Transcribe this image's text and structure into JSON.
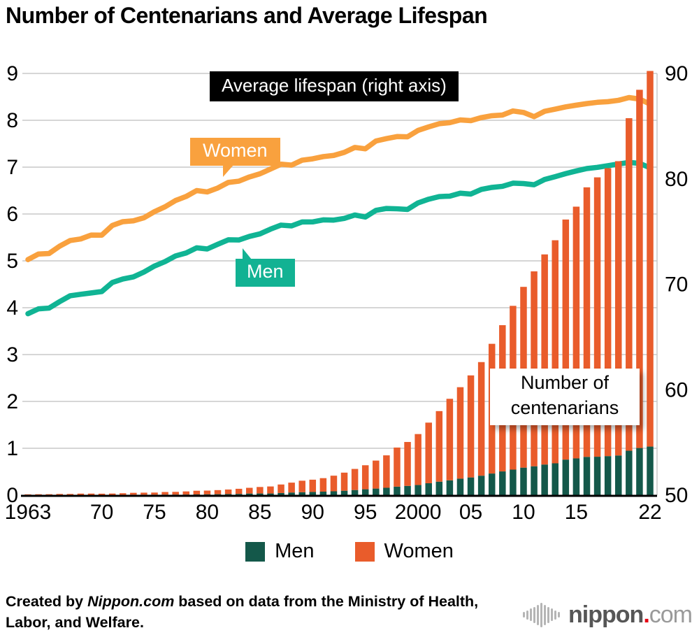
{
  "page": {
    "title": "Number of Centenarians and Average Lifespan"
  },
  "annotations": {
    "lifespan_box": "Average lifespan (right axis)",
    "women_line": "Women",
    "men_line": "Men",
    "centenarians_line1": "Number of",
    "centenarians_line2": "centenarians"
  },
  "legend": {
    "men_label": "Men",
    "women_label": "Women"
  },
  "footer": {
    "credit_prefix": "Created by ",
    "credit_source": "Nippon.com",
    "credit_line1_suffix": " based on data from the Ministry of Health,",
    "credit_line2": "Labor, and Welfare."
  },
  "logo": {
    "icon": "soundwave-bars-icon",
    "brand": "nippon",
    "dot": ".",
    "tld": "com"
  },
  "colors": {
    "bar_men": "#14584A",
    "bar_women": "#E95C2B",
    "line_men": "#10B494",
    "line_women": "#F9A13E",
    "label_men_bg": "#12B293",
    "label_women_bg": "#F9A13E",
    "grid": "#C9C9C9",
    "axis_baseline": "#000000",
    "logo_red": "#E60012"
  },
  "chart_data": {
    "type": "combo: stacked bar (number of centenarians, left axis) + line (average lifespan, right axis)",
    "years": [
      1963,
      1964,
      1965,
      1966,
      1967,
      1968,
      1969,
      1970,
      1971,
      1972,
      1973,
      1974,
      1975,
      1976,
      1977,
      1978,
      1979,
      1980,
      1981,
      1982,
      1983,
      1984,
      1985,
      1986,
      1987,
      1988,
      1989,
      1990,
      1991,
      1992,
      1993,
      1994,
      1995,
      1996,
      1997,
      1998,
      1999,
      2000,
      2001,
      2002,
      2003,
      2004,
      2005,
      2006,
      2007,
      2008,
      2009,
      2010,
      2011,
      2012,
      2013,
      2014,
      2015,
      2016,
      2017,
      2018,
      2019,
      2020,
      2021,
      2022
    ],
    "x_tick_labels": [
      {
        "year": 1963,
        "label": "1963"
      },
      {
        "year": 1970,
        "label": "70"
      },
      {
        "year": 1975,
        "label": "75"
      },
      {
        "year": 1980,
        "label": "80"
      },
      {
        "year": 1985,
        "label": "85"
      },
      {
        "year": 1990,
        "label": "90"
      },
      {
        "year": 1995,
        "label": "95"
      },
      {
        "year": 2000,
        "label": "2000"
      },
      {
        "year": 2005,
        "label": "05"
      },
      {
        "year": 2010,
        "label": "10"
      },
      {
        "year": 2015,
        "label": "15"
      },
      {
        "year": 2022,
        "label": "22"
      }
    ],
    "left_axis": {
      "ticks": [
        0,
        1,
        2,
        3,
        4,
        5,
        6,
        7,
        8,
        9
      ],
      "range": [
        0,
        9
      ],
      "scale": "bars plotted in ten-thousands of persons"
    },
    "right_axis": {
      "ticks": [
        50,
        60,
        70,
        80,
        90
      ],
      "range": [
        50,
        90
      ]
    },
    "bars": {
      "stack_order": [
        "men",
        "women"
      ],
      "series": [
        {
          "name": "Men centenarians",
          "values": [
            20,
            25,
            27,
            36,
            38,
            52,
            55,
            62,
            70,
            78,
            91,
            96,
            102,
            113,
            122,
            132,
            152,
            174,
            202,
            233,
            269,
            347,
            359,
            361,
            462,
            562,
            630,
            680,
            749,
            822,
            943,
            1093,
            1255,
            1400,
            1570,
            1812,
            1973,
            2158,
            2541,
            2875,
            3159,
            3523,
            3779,
            4150,
            4613,
            5063,
            5447,
            5869,
            6162,
            6534,
            6791,
            7586,
            7840,
            8167,
            8197,
            8331,
            8463,
            9475,
            10060,
            10365
          ]
        },
        {
          "name": "Women centenarians",
          "values": [
            133,
            166,
            171,
            216,
            215,
            275,
            276,
            248,
            269,
            327,
            404,
            431,
            446,
            553,
            575,
            660,
            785,
            794,
            870,
            967,
            1085,
            1216,
            1381,
            1490,
            1809,
            2106,
            2448,
            2618,
            2876,
            3330,
            3859,
            4500,
            5123,
            5973,
            6921,
            8346,
            9373,
            10878,
            12934,
            15059,
            17402,
            19515,
            21775,
            24245,
            27682,
            31213,
            34952,
            38580,
            41594,
            44842,
            47606,
            51234,
            53728,
            57525,
            59627,
            61454,
            62811,
            70975,
            76450,
            80161
          ]
        }
      ]
    },
    "lines": {
      "series": [
        {
          "name": "Men average lifespan",
          "values": [
            67.21,
            67.67,
            67.74,
            68.35,
            68.91,
            69.05,
            69.18,
            69.31,
            70.17,
            70.5,
            70.7,
            71.16,
            71.73,
            72.15,
            72.69,
            72.97,
            73.46,
            73.35,
            73.79,
            74.22,
            74.2,
            74.54,
            74.78,
            75.23,
            75.61,
            75.54,
            75.91,
            75.92,
            76.11,
            76.09,
            76.25,
            76.57,
            76.38,
            77.01,
            77.19,
            77.16,
            77.1,
            77.72,
            78.07,
            78.32,
            78.36,
            78.64,
            78.56,
            79.0,
            79.19,
            79.29,
            79.59,
            79.55,
            79.44,
            79.94,
            80.21,
            80.5,
            80.75,
            80.98,
            81.09,
            81.25,
            81.41,
            81.56,
            81.47,
            81.05
          ]
        },
        {
          "name": "Women average lifespan",
          "values": [
            72.34,
            72.87,
            72.92,
            73.61,
            74.15,
            74.3,
            74.67,
            74.66,
            75.58,
            75.94,
            76.02,
            76.31,
            76.89,
            77.35,
            77.95,
            78.33,
            78.89,
            78.76,
            79.13,
            79.66,
            79.78,
            80.18,
            80.48,
            80.93,
            81.39,
            81.3,
            81.77,
            81.9,
            82.11,
            82.22,
            82.51,
            82.98,
            82.85,
            83.59,
            83.82,
            84.01,
            83.99,
            84.6,
            84.93,
            85.23,
            85.33,
            85.59,
            85.52,
            85.81,
            85.99,
            86.05,
            86.44,
            86.3,
            85.9,
            86.41,
            86.61,
            86.83,
            86.99,
            87.14,
            87.26,
            87.32,
            87.45,
            87.71,
            87.57,
            87.09
          ]
        }
      ]
    }
  }
}
